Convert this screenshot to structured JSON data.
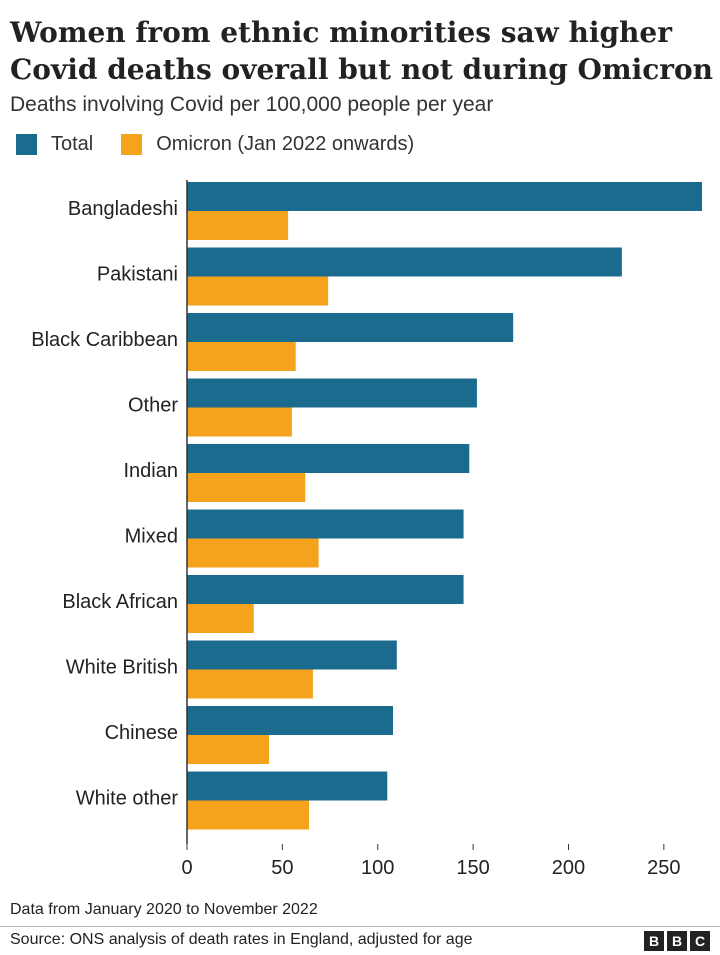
{
  "title_line1": "Women from ethnic minorities saw higher",
  "title_line2": "Covid deaths overall but not during Omicron",
  "subtitle": "Deaths involving Covid per 100,000 people per year",
  "footer_note": "Data from January 2020 to November 2022",
  "source": "Source: ONS analysis of death rates in England, adjusted for age",
  "logo": [
    "B",
    "B",
    "C"
  ],
  "colors": {
    "total": "#1b6b8e",
    "omicron": "#f5a21c"
  },
  "chart_data": {
    "type": "bar",
    "orientation": "horizontal",
    "categories": [
      "Bangladeshi",
      "Pakistani",
      "Black Caribbean",
      "Other",
      "Indian",
      "Mixed",
      "Black African",
      "White British",
      "Chinese",
      "White other"
    ],
    "series": [
      {
        "name": "Total",
        "values": [
          270,
          228,
          171,
          152,
          148,
          145,
          145,
          110,
          108,
          105
        ]
      },
      {
        "name": "Omicron (Jan 2022 onwards)",
        "values": [
          53,
          74,
          57,
          55,
          62,
          69,
          35,
          66,
          43,
          64
        ]
      }
    ],
    "xlim": [
      0,
      270
    ],
    "xticks": [
      0,
      50,
      100,
      150,
      200,
      250
    ],
    "xlabel": "",
    "ylabel": "",
    "legend": "top-left",
    "grid": false
  }
}
